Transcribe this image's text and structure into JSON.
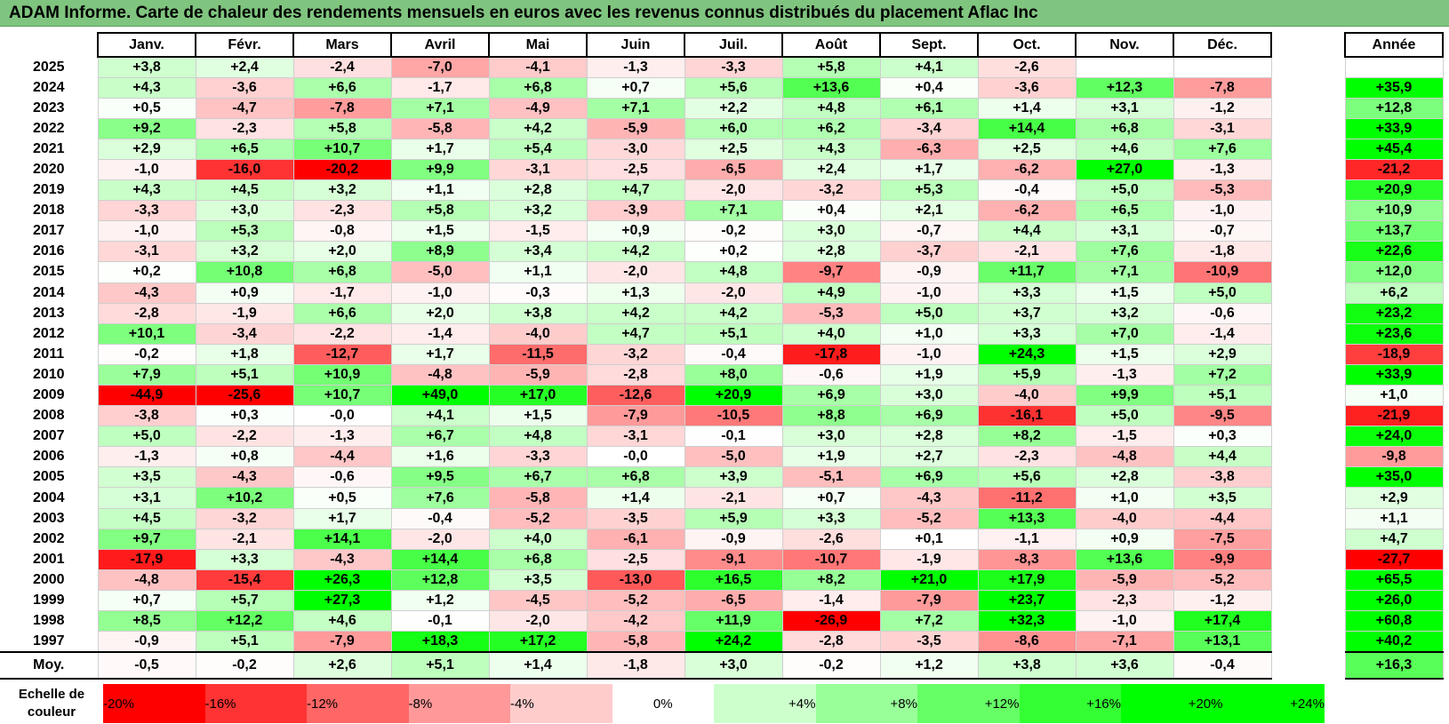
{
  "title": "ADAM Informe. Carte de chaleur des rendements mensuels en euros avec les revenus connus distribués du placement Aflac Inc",
  "chart_data": {
    "type": "heatmap",
    "title": "ADAM Informe. Carte de chaleur des rendements mensuels en euros avec les revenus connus distribués du placement Aflac Inc",
    "months": [
      "Janv.",
      "Févr.",
      "Mars",
      "Avril",
      "Mai",
      "Juin",
      "Juil.",
      "Août",
      "Sept.",
      "Oct.",
      "Nov.",
      "Déc."
    ],
    "annual_header": "Année",
    "rows": [
      {
        "year": "2025",
        "values": [
          "+3,8",
          "+2,4",
          "-2,4",
          "-7,0",
          "-4,1",
          "-1,3",
          "-3,3",
          "+5,8",
          "+4,1",
          "-2,6",
          "",
          ""
        ],
        "annual": ""
      },
      {
        "year": "2024",
        "values": [
          "+4,3",
          "-3,6",
          "+6,6",
          "-1,7",
          "+6,8",
          "+0,7",
          "+5,6",
          "+13,6",
          "+0,4",
          "-3,6",
          "+12,3",
          "-7,8"
        ],
        "annual": "+35,9"
      },
      {
        "year": "2023",
        "values": [
          "+0,5",
          "-4,7",
          "-7,8",
          "+7,1",
          "-4,9",
          "+7,1",
          "+2,2",
          "+4,8",
          "+6,1",
          "+1,4",
          "+3,1",
          "-1,2"
        ],
        "annual": "+12,8"
      },
      {
        "year": "2022",
        "values": [
          "+9,2",
          "-2,3",
          "+5,8",
          "-5,8",
          "+4,2",
          "-5,9",
          "+6,0",
          "+6,2",
          "-3,4",
          "+14,4",
          "+6,8",
          "-3,1"
        ],
        "annual": "+33,9"
      },
      {
        "year": "2021",
        "values": [
          "+2,9",
          "+6,5",
          "+10,7",
          "+1,7",
          "+5,4",
          "-3,0",
          "+2,5",
          "+4,3",
          "-6,3",
          "+2,5",
          "+4,6",
          "+7,6"
        ],
        "annual": "+45,4"
      },
      {
        "year": "2020",
        "values": [
          "-1,0",
          "-16,0",
          "-20,2",
          "+9,9",
          "-3,1",
          "-2,5",
          "-6,5",
          "+2,4",
          "+1,7",
          "-6,2",
          "+27,0",
          "-1,3"
        ],
        "annual": "-21,2"
      },
      {
        "year": "2019",
        "values": [
          "+4,3",
          "+4,5",
          "+3,2",
          "+1,1",
          "+2,8",
          "+4,7",
          "-2,0",
          "-3,2",
          "+5,3",
          "-0,4",
          "+5,0",
          "-5,3"
        ],
        "annual": "+20,9"
      },
      {
        "year": "2018",
        "values": [
          "-3,3",
          "+3,0",
          "-2,3",
          "+5,8",
          "+3,2",
          "-3,9",
          "+7,1",
          "+0,4",
          "+2,1",
          "-6,2",
          "+6,5",
          "-1,0"
        ],
        "annual": "+10,9"
      },
      {
        "year": "2017",
        "values": [
          "-1,0",
          "+5,3",
          "-0,8",
          "+1,5",
          "-1,5",
          "+0,9",
          "-0,2",
          "+3,0",
          "-0,7",
          "+4,4",
          "+3,1",
          "-0,7"
        ],
        "annual": "+13,7"
      },
      {
        "year": "2016",
        "values": [
          "-3,1",
          "+3,2",
          "+2,0",
          "+8,9",
          "+3,4",
          "+4,2",
          "+0,2",
          "+2,8",
          "-3,7",
          "-2,1",
          "+7,6",
          "-1,8"
        ],
        "annual": "+22,6"
      },
      {
        "year": "2015",
        "values": [
          "+0,2",
          "+10,8",
          "+6,8",
          "-5,0",
          "+1,1",
          "-2,0",
          "+4,8",
          "-9,7",
          "-0,9",
          "+11,7",
          "+7,1",
          "-10,9"
        ],
        "annual": "+12,0"
      },
      {
        "year": "2014",
        "values": [
          "-4,3",
          "+0,9",
          "-1,7",
          "-1,0",
          "-0,3",
          "+1,3",
          "-2,0",
          "+4,9",
          "-1,0",
          "+3,3",
          "+1,5",
          "+5,0"
        ],
        "annual": "+6,2"
      },
      {
        "year": "2013",
        "values": [
          "-2,8",
          "-1,9",
          "+6,6",
          "+2,0",
          "+3,8",
          "+4,2",
          "+4,2",
          "-5,3",
          "+5,0",
          "+3,7",
          "+3,2",
          "-0,6"
        ],
        "annual": "+23,2"
      },
      {
        "year": "2012",
        "values": [
          "+10,1",
          "-3,4",
          "-2,2",
          "-1,4",
          "-4,0",
          "+4,7",
          "+5,1",
          "+4,0",
          "+1,0",
          "+3,3",
          "+7,0",
          "-1,4"
        ],
        "annual": "+23,6"
      },
      {
        "year": "2011",
        "values": [
          "-0,2",
          "+1,8",
          "-12,7",
          "+1,7",
          "-11,5",
          "-3,2",
          "-0,4",
          "-17,8",
          "-1,0",
          "+24,3",
          "+1,5",
          "+2,9"
        ],
        "annual": "-18,9"
      },
      {
        "year": "2010",
        "values": [
          "+7,9",
          "+5,1",
          "+10,9",
          "-4,8",
          "-5,9",
          "-2,8",
          "+8,0",
          "-0,6",
          "+1,9",
          "+5,9",
          "-1,3",
          "+7,2"
        ],
        "annual": "+33,9"
      },
      {
        "year": "2009",
        "values": [
          "-44,9",
          "-25,6",
          "+10,7",
          "+49,0",
          "+17,0",
          "-12,6",
          "+20,9",
          "+6,9",
          "+3,0",
          "-4,0",
          "+9,9",
          "+5,1"
        ],
        "annual": "+1,0"
      },
      {
        "year": "2008",
        "values": [
          "-3,8",
          "+0,3",
          "-0,0",
          "+4,1",
          "+1,5",
          "-7,9",
          "-10,5",
          "+8,8",
          "+6,9",
          "-16,1",
          "+5,0",
          "-9,5"
        ],
        "annual": "-21,9"
      },
      {
        "year": "2007",
        "values": [
          "+5,0",
          "-2,2",
          "-1,3",
          "+6,7",
          "+4,8",
          "-3,1",
          "-0,1",
          "+3,0",
          "+2,8",
          "+8,2",
          "-1,5",
          "+0,3"
        ],
        "annual": "+24,0"
      },
      {
        "year": "2006",
        "values": [
          "-1,3",
          "+0,8",
          "-4,4",
          "+1,6",
          "-3,3",
          "-0,0",
          "-5,0",
          "+1,9",
          "+2,7",
          "-2,3",
          "-4,8",
          "+4,4"
        ],
        "annual": "-9,8"
      },
      {
        "year": "2005",
        "values": [
          "+3,5",
          "-4,3",
          "-0,6",
          "+9,5",
          "+6,7",
          "+6,8",
          "+3,9",
          "-5,1",
          "+6,9",
          "+5,6",
          "+2,8",
          "-3,8"
        ],
        "annual": "+35,0"
      },
      {
        "year": "2004",
        "values": [
          "+3,1",
          "+10,2",
          "+0,5",
          "+7,6",
          "-5,8",
          "+1,4",
          "-2,1",
          "+0,7",
          "-4,3",
          "-11,2",
          "+1,0",
          "+3,5"
        ],
        "annual": "+2,9"
      },
      {
        "year": "2003",
        "values": [
          "+4,5",
          "-3,2",
          "+1,7",
          "-0,4",
          "-5,2",
          "-3,5",
          "+5,9",
          "+3,3",
          "-5,2",
          "+13,3",
          "-4,0",
          "-4,4"
        ],
        "annual": "+1,1"
      },
      {
        "year": "2002",
        "values": [
          "+9,7",
          "-2,1",
          "+14,1",
          "-2,0",
          "+4,0",
          "-6,1",
          "-0,9",
          "-2,6",
          "+0,1",
          "-1,1",
          "+0,9",
          "-7,5"
        ],
        "annual": "+4,7"
      },
      {
        "year": "2001",
        "values": [
          "-17,9",
          "+3,3",
          "-4,3",
          "+14,4",
          "+6,8",
          "-2,5",
          "-9,1",
          "-10,7",
          "-1,9",
          "-8,3",
          "+13,6",
          "-9,9"
        ],
        "annual": "-27,7"
      },
      {
        "year": "2000",
        "values": [
          "-4,8",
          "-15,4",
          "+26,3",
          "+12,8",
          "+3,5",
          "-13,0",
          "+16,5",
          "+8,2",
          "+21,0",
          "+17,9",
          "-5,9",
          "-5,2"
        ],
        "annual": "+65,5"
      },
      {
        "year": "1999",
        "values": [
          "+0,7",
          "+5,7",
          "+27,3",
          "+1,2",
          "-4,5",
          "-5,2",
          "-6,5",
          "-1,4",
          "-7,9",
          "+23,7",
          "-2,3",
          "-1,2"
        ],
        "annual": "+26,0"
      },
      {
        "year": "1998",
        "values": [
          "+8,5",
          "+12,2",
          "+4,6",
          "-0,1",
          "-2,0",
          "-4,2",
          "+11,9",
          "-26,9",
          "+7,2",
          "+32,3",
          "-1,0",
          "+17,4"
        ],
        "annual": "+60,8"
      },
      {
        "year": "1997",
        "values": [
          "-0,9",
          "+5,1",
          "-7,9",
          "+18,3",
          "+17,2",
          "-5,8",
          "+24,2",
          "-2,8",
          "-3,5",
          "-8,6",
          "-7,1",
          "+13,1"
        ],
        "annual": "+40,2"
      }
    ],
    "average": {
      "label": "Moy.",
      "values": [
        "-0,5",
        "-0,2",
        "+2,6",
        "+5,1",
        "+1,4",
        "-1,8",
        "+3,0",
        "-0,2",
        "+1,2",
        "+3,8",
        "+3,6",
        "-0,4"
      ],
      "annual": "+16,3"
    },
    "scale": {
      "label": "Echelle de couleur",
      "steps": [
        {
          "text": "-20%",
          "value": -20,
          "align": "left"
        },
        {
          "text": "-16%",
          "value": -16,
          "align": "left"
        },
        {
          "text": "-12%",
          "value": -12,
          "align": "left"
        },
        {
          "text": "-8%",
          "value": -8,
          "align": "left"
        },
        {
          "text": "-4%",
          "value": -4,
          "align": "left"
        },
        {
          "text": "0%",
          "value": 0,
          "align": "center"
        },
        {
          "text": "+4%",
          "value": 4,
          "align": "right"
        },
        {
          "text": "+8%",
          "value": 8,
          "align": "right"
        },
        {
          "text": "+12%",
          "value": 12,
          "align": "right"
        },
        {
          "text": "+16%",
          "value": 16,
          "align": "right"
        },
        {
          "text": "+20%",
          "value": 20,
          "align": "right"
        },
        {
          "text": "+24%",
          "value": 24,
          "align": "right"
        }
      ]
    },
    "colors": {
      "negative": "#ff0000",
      "neutral": "#ffffff",
      "positive": "#00ff00"
    }
  }
}
